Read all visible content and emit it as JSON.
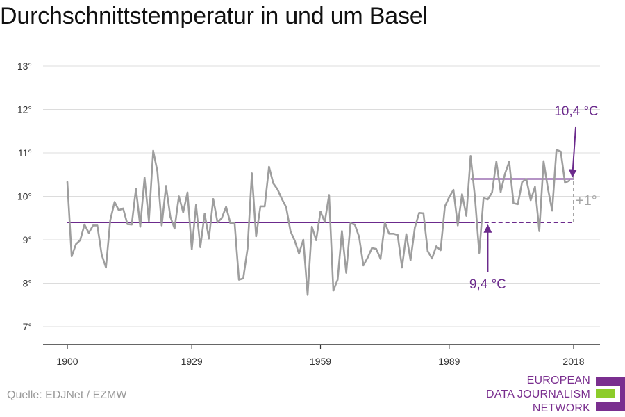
{
  "title": "Durchschnittstemperatur in und um Basel",
  "source": "Quelle: EDJNet / EZMW",
  "logo": {
    "lines": [
      "EUROPEAN",
      "DATA JOURNALISM",
      "NETWORK"
    ],
    "colors": {
      "purple": "#7a2f8f",
      "green": "#8ccc2a"
    }
  },
  "colors": {
    "series": "#9e9e9e",
    "accent": "#6b2a8c",
    "annotation_gray": "#a6a6a6",
    "grid": "#dcdcdc",
    "axis": "#333333"
  },
  "chart_data": {
    "type": "line",
    "title": "Durchschnittstemperatur in und um Basel",
    "xlabel": "",
    "ylabel": "",
    "xlim": [
      1900,
      2018
    ],
    "ylim": [
      7,
      13
    ],
    "x_ticks": [
      1900,
      1929,
      1959,
      1989,
      2018
    ],
    "y_ticks": [
      7,
      8,
      9,
      10,
      11,
      12,
      13
    ],
    "y_tick_labels": [
      "7°",
      "8°",
      "9°",
      "10°",
      "11°",
      "12°",
      "13°"
    ],
    "grid": true,
    "series": [
      {
        "x": [
          1900,
          1901,
          1902,
          1903,
          1904,
          1905,
          1906,
          1907,
          1908,
          1909,
          1910,
          1911,
          1912,
          1913,
          1914,
          1915,
          1916,
          1917,
          1918,
          1919,
          1920,
          1921,
          1922,
          1923,
          1924,
          1925,
          1926,
          1927,
          1928,
          1929,
          1930,
          1931,
          1932,
          1933,
          1934,
          1935,
          1936,
          1937,
          1938,
          1939,
          1940,
          1941,
          1942,
          1943,
          1944,
          1945,
          1946,
          1947,
          1948,
          1949,
          1950,
          1951,
          1952,
          1953,
          1954,
          1955,
          1956,
          1957,
          1958,
          1959,
          1960,
          1961,
          1962,
          1963,
          1964,
          1965,
          1966,
          1967,
          1968,
          1969,
          1970,
          1971,
          1972,
          1973,
          1974,
          1975,
          1976,
          1977,
          1978,
          1979,
          1980,
          1981,
          1982,
          1983,
          1984,
          1985,
          1986,
          1987,
          1988,
          1989,
          1990,
          1991,
          1992,
          1993,
          1994,
          1995,
          1996,
          1997,
          1998,
          1999,
          2000,
          2001,
          2002,
          2003,
          2004,
          2005,
          2006,
          2007,
          2008,
          2009,
          2010,
          2011,
          2012,
          2013,
          2014,
          2015,
          2016,
          2017
        ],
        "y": [
          10.33,
          8.62,
          8.9,
          8.99,
          9.35,
          9.16,
          9.33,
          9.33,
          8.66,
          8.36,
          9.45,
          9.87,
          9.68,
          9.72,
          9.36,
          9.35,
          10.18,
          9.3,
          10.43,
          9.43,
          11.05,
          10.57,
          9.33,
          10.24,
          9.53,
          9.26,
          10.0,
          9.63,
          10.09,
          8.78,
          9.8,
          8.83,
          9.6,
          9.03,
          9.94,
          9.4,
          9.5,
          9.76,
          9.38,
          9.38,
          8.08,
          8.11,
          8.8,
          10.53,
          9.08,
          9.77,
          9.77,
          10.68,
          10.3,
          10.16,
          9.94,
          9.75,
          9.2,
          8.98,
          8.68,
          9.0,
          7.73,
          9.3,
          8.99,
          9.65,
          9.41,
          10.03,
          7.83,
          8.08,
          9.2,
          8.24,
          9.38,
          9.35,
          9.07,
          8.41,
          8.59,
          8.81,
          8.79,
          8.56,
          9.4,
          9.14,
          9.14,
          9.11,
          8.36,
          9.13,
          8.53,
          9.28,
          9.62,
          9.61,
          8.74,
          8.57,
          8.85,
          8.76,
          9.77,
          9.98,
          10.15,
          9.33,
          10.05,
          9.55,
          10.93,
          9.99,
          8.7,
          9.96,
          9.93,
          10.09,
          10.8,
          10.1,
          10.52,
          10.8,
          9.84,
          9.82,
          10.33,
          10.4,
          9.91,
          10.22,
          9.2,
          10.81,
          10.19,
          9.67,
          11.07,
          11.03,
          10.31,
          10.36
        ]
      }
    ],
    "reference_lines": [
      {
        "value": 9.4,
        "label": "9,4 °C",
        "x_solid": [
          1900,
          1994
        ],
        "x_dashed": [
          1994,
          2018
        ]
      },
      {
        "value": 10.4,
        "label": "10,4 °C",
        "x_solid": [
          1994,
          2018
        ]
      }
    ],
    "annotations": [
      {
        "text": "+1°",
        "x": 2018,
        "y_from": 9.4,
        "y_to": 10.4
      }
    ]
  }
}
